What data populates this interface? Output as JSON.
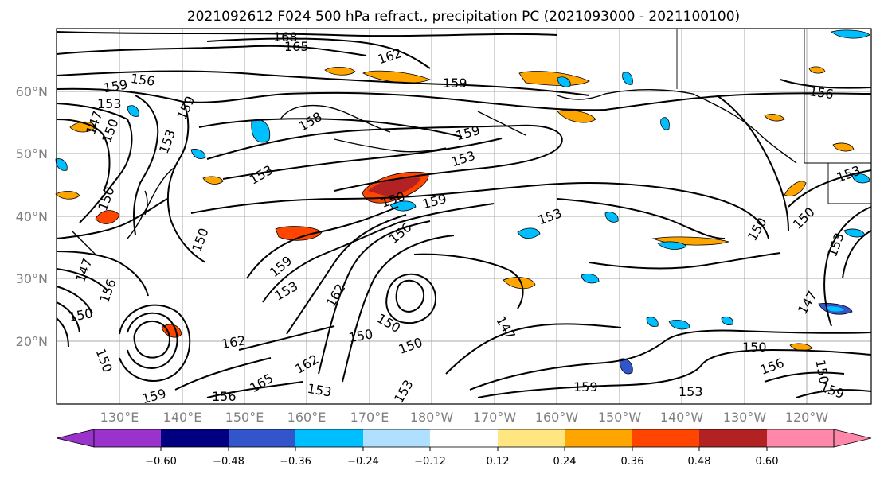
{
  "title": "2021092612 F024 500 hPa refract., precipitation PC (2021093000 - 2021100100)",
  "lat_labels": [
    "60°N",
    "50°N",
    "40°N",
    "30°N",
    "20°N"
  ],
  "lon_labels": [
    "130°E",
    "140°E",
    "150°E",
    "160°E",
    "170°E",
    "180°W",
    "170°W",
    "160°W",
    "150°W",
    "140°W",
    "130°W",
    "120°W"
  ],
  "colorbar": {
    "colors": [
      "#9933cc",
      "#000080",
      "#3355cc",
      "#00bfff",
      "#b0e0ff",
      "#ffffff",
      "#ffe680",
      "#ffa500",
      "#ff4500",
      "#b22222",
      "#ff88aa"
    ],
    "ticks": [
      "−0.60",
      "−0.48",
      "−0.36",
      "−0.24",
      "−0.12",
      "0.12",
      "0.24",
      "0.36",
      "0.48",
      "0.60"
    ]
  },
  "contour_labels": [
    "168",
    "165",
    "162",
    "159",
    "156",
    "156",
    "159",
    "153",
    "150",
    "147",
    "153",
    "159",
    "158",
    "159",
    "153",
    "153",
    "150",
    "159",
    "153",
    "150",
    "150",
    "153",
    "156",
    "159",
    "162",
    "165",
    "150",
    "150",
    "150",
    "147",
    "162",
    "156",
    "153",
    "153",
    "159",
    "162",
    "150",
    "150",
    "156",
    "153",
    "147",
    "150",
    "159",
    "153",
    "156",
    "150",
    "150",
    "153",
    "147",
    "150",
    "159"
  ],
  "colors": {
    "contour": "#000000",
    "grid": "#a9a9a9",
    "border": "#000000",
    "coast": "#000000"
  }
}
